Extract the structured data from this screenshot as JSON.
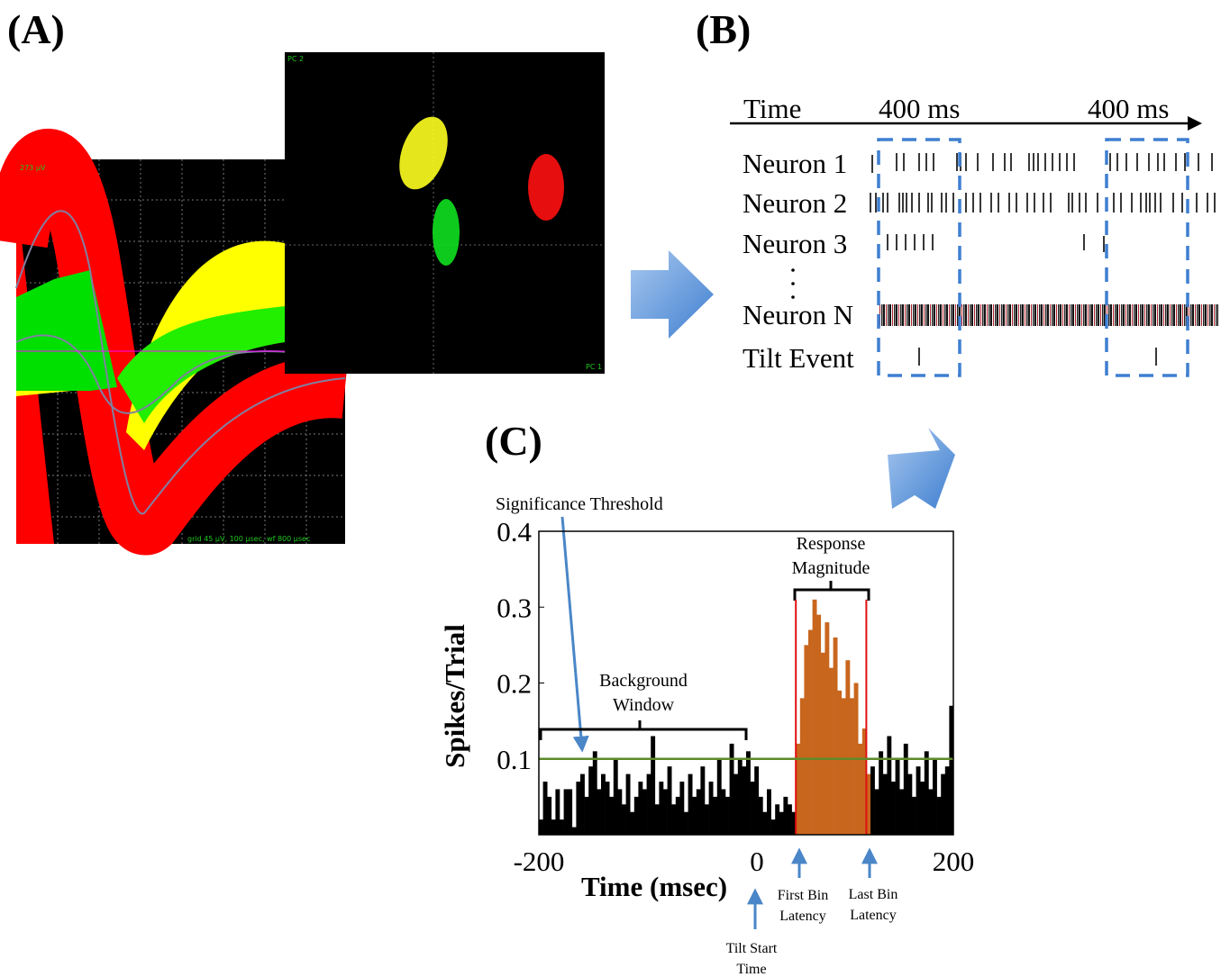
{
  "panels": {
    "a": "(A)",
    "b": "(B)",
    "c": "(C)"
  },
  "panel_a": {
    "waveform_scale": "273 µV",
    "grid_note": "grid 45 µV, 100 µsec, wf 800 µsec",
    "pc_y": "PC 2",
    "pc_x": "PC 1"
  },
  "panel_b": {
    "time_label": "Time",
    "window_labels": [
      "400 ms",
      "400 ms"
    ],
    "rows": [
      "Neuron 1",
      "Neuron 2",
      "Neuron 3",
      "Neuron N",
      "Tilt Event"
    ]
  },
  "chart_data": {
    "type": "histogram",
    "y_label": "Spikes/Trial",
    "x_label": "Time (msec)",
    "bins": [
      -200,
      -196,
      -192,
      -188,
      -184,
      -180,
      -176,
      -172,
      -168,
      -164,
      -160,
      -156,
      -152,
      -148,
      -144,
      -140,
      -136,
      -132,
      -128,
      -124,
      -120,
      -116,
      -112,
      -108,
      -104,
      -100,
      -96,
      -92,
      -88,
      -84,
      -80,
      -76,
      -72,
      -68,
      -64,
      -60,
      -56,
      -52,
      -48,
      -44,
      -40,
      -36,
      -32,
      -28,
      -24,
      -20,
      -16,
      -12,
      -8,
      -4,
      0,
      4,
      8,
      12,
      16,
      20,
      24,
      28,
      32,
      36,
      40,
      44,
      48,
      52,
      56,
      60,
      64,
      68,
      72,
      76,
      80,
      84,
      88,
      92,
      96,
      100,
      104,
      108,
      112,
      116,
      120,
      124,
      128,
      132,
      136,
      140,
      144,
      148,
      152,
      156,
      160,
      164,
      168,
      172,
      176,
      180,
      184,
      188,
      192,
      196,
      200
    ],
    "values": [
      0.02,
      0.07,
      0.05,
      0.02,
      0.06,
      0.02,
      0.06,
      0.06,
      0.01,
      0.07,
      0.08,
      0.05,
      0.09,
      0.11,
      0.06,
      0.08,
      0.07,
      0.05,
      0.1,
      0.06,
      0.04,
      0.08,
      0.03,
      0.05,
      0.07,
      0.06,
      0.08,
      0.13,
      0.04,
      0.07,
      0.06,
      0.09,
      0.04,
      0.05,
      0.07,
      0.03,
      0.08,
      0.05,
      0.06,
      0.09,
      0.04,
      0.07,
      0.05,
      0.1,
      0.06,
      0.05,
      0.12,
      0.08,
      0.1,
      0.09,
      0.11,
      0.07,
      0.09,
      0.05,
      0.03,
      0.06,
      0.02,
      0.04,
      0.03,
      0.05,
      0.04,
      0.03,
      0.12,
      0.18,
      0.25,
      0.27,
      0.31,
      0.29,
      0.24,
      0.28,
      0.22,
      0.26,
      0.19,
      0.18,
      0.23,
      0.18,
      0.2,
      0.12,
      0.14,
      0.08,
      0.09,
      0.06,
      0.11,
      0.08,
      0.13,
      0.07,
      0.1,
      0.06,
      0.12,
      0.08,
      0.05,
      0.09,
      0.07,
      0.11,
      0.06,
      0.1,
      0.05,
      0.08,
      0.09,
      0.17
    ],
    "color": "#000000",
    "highlight_color": "#c8661e",
    "response_window": [
      48,
      116
    ],
    "response_color": "#e01010",
    "threshold": 0.1,
    "threshold_color": "#5f8a2a",
    "xlim": [
      -200,
      200
    ],
    "ylim": [
      0,
      0.4
    ],
    "xticks": [
      -200,
      0,
      200
    ],
    "yticks": [
      0.1,
      0.2,
      0.3,
      0.4
    ],
    "annotations": {
      "significance_threshold": "Significance  Threshold",
      "background_window": [
        "Background",
        "Window"
      ],
      "response_magnitude": [
        "Response",
        "Magnitude"
      ],
      "first_bin_latency": [
        "First Bin",
        "Latency"
      ],
      "last_bin_latency": [
        "Last Bin",
        "Latency"
      ],
      "tilt_start_time": [
        "Tilt Start",
        "Time"
      ]
    }
  }
}
